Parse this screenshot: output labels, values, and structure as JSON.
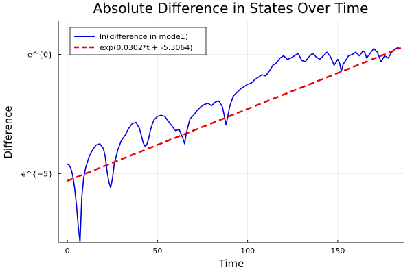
{
  "chart_data": {
    "type": "line",
    "title": "Absolute Difference in States Over Time",
    "xlabel": "Time",
    "ylabel": "Difference",
    "xlim": [
      -5,
      187
    ],
    "ylim": [
      -7.9,
      1.4
    ],
    "log_scale_y": true,
    "grid": true,
    "legend_position": "top-left",
    "x_ticks": [
      0,
      50,
      100,
      150
    ],
    "x_tick_labels": [
      "0",
      "50",
      "100",
      "150"
    ],
    "y_ticks": [
      0,
      -5
    ],
    "y_tick_labels": [
      "e^{0}",
      "e^{−5}"
    ],
    "series": [
      {
        "name": "ln(difference in mode1)",
        "color": "#0000dd",
        "style": "solid",
        "x": [
          0,
          1,
          2,
          3,
          4,
          5,
          6,
          7,
          8,
          9,
          10,
          12,
          14,
          16,
          18,
          20,
          21,
          22,
          23,
          24,
          25,
          26,
          28,
          30,
          32,
          34,
          36,
          38,
          40,
          41,
          42,
          43,
          44,
          45,
          46,
          47,
          48,
          50,
          52,
          54,
          56,
          58,
          60,
          62,
          64,
          65,
          66,
          67,
          68,
          70,
          72,
          74,
          76,
          78,
          80,
          82,
          84,
          86,
          87,
          88,
          89,
          90,
          92,
          94,
          96,
          98,
          100,
          102,
          104,
          106,
          108,
          110,
          112,
          114,
          116,
          118,
          120,
          122,
          124,
          126,
          128,
          130,
          132,
          134,
          136,
          138,
          140,
          142,
          144,
          146,
          148,
          150,
          151,
          152,
          153,
          154,
          156,
          158,
          160,
          162,
          164,
          165,
          166,
          168,
          170,
          172,
          174,
          176,
          178,
          180,
          182,
          184
        ],
        "y": [
          -4.6,
          -4.65,
          -4.8,
          -5.1,
          -5.6,
          -6.3,
          -7.2,
          -7.9,
          -6.0,
          -5.2,
          -4.8,
          -4.3,
          -4.0,
          -3.8,
          -3.75,
          -3.95,
          -4.3,
          -4.9,
          -5.35,
          -5.6,
          -5.2,
          -4.6,
          -4.0,
          -3.6,
          -3.4,
          -3.1,
          -2.9,
          -2.85,
          -3.1,
          -3.4,
          -3.7,
          -3.85,
          -3.8,
          -3.55,
          -3.2,
          -2.95,
          -2.75,
          -2.6,
          -2.55,
          -2.6,
          -2.8,
          -3.0,
          -3.2,
          -3.15,
          -3.5,
          -3.75,
          -3.3,
          -3.0,
          -2.7,
          -2.55,
          -2.35,
          -2.2,
          -2.1,
          -2.05,
          -2.15,
          -2.0,
          -1.95,
          -2.2,
          -2.55,
          -2.95,
          -2.6,
          -2.2,
          -1.75,
          -1.6,
          -1.45,
          -1.35,
          -1.25,
          -1.2,
          -1.05,
          -0.95,
          -0.85,
          -0.9,
          -0.7,
          -0.45,
          -0.35,
          -0.15,
          -0.05,
          -0.2,
          -0.15,
          -0.05,
          0.05,
          -0.25,
          -0.3,
          -0.1,
          0.05,
          -0.1,
          -0.2,
          -0.05,
          0.1,
          -0.1,
          -0.45,
          -0.2,
          -0.35,
          -0.7,
          -0.4,
          -0.3,
          -0.05,
          0.0,
          0.1,
          -0.05,
          0.15,
          0.1,
          -0.15,
          0.05,
          0.25,
          0.1,
          -0.3,
          -0.05,
          -0.15,
          0.1,
          0.25,
          0.3
        ]
      },
      {
        "name": "exp(0.0302*t + -5.3064)",
        "color": "#ee0000",
        "style": "dashed",
        "slope": 0.0302,
        "intercept": -5.3064,
        "x": [
          0,
          185
        ],
        "y": [
          -5.3064,
          0.2806
        ]
      }
    ]
  }
}
